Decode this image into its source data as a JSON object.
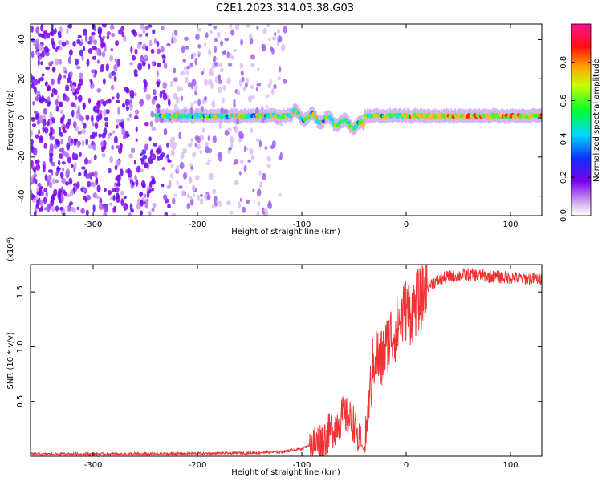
{
  "title": "C2E1.2023.314.03.38.G03",
  "chart_data": [
    {
      "type": "heatmap",
      "title": "C2E1.2023.314.03.38.G03",
      "xlabel": "Height of straight line (km)",
      "ylabel": "Frequency (Hz)",
      "xlim": [
        -360,
        130
      ],
      "ylim": [
        -50,
        48
      ],
      "x_ticks": [
        -300,
        -200,
        -100,
        0,
        100
      ],
      "y_ticks": [
        40,
        20,
        0,
        -20,
        -40
      ],
      "colorbar": {
        "label": "Normalized spectral amplitude",
        "range": [
          0.0,
          1.0
        ],
        "ticks": [
          0.0,
          0.2,
          0.4,
          0.6,
          0.8
        ],
        "colormap": "rainbow: white, violet, blue, cyan, green, yellow, red, magenta"
      },
      "features": [
        {
          "description": "scattered low-amplitude noise",
          "x_range": [
            -360,
            -115
          ],
          "y_range": [
            -50,
            48
          ]
        },
        {
          "description": "carrier line near 0 Hz",
          "x_range": [
            -240,
            130
          ],
          "y_center": 1
        }
      ],
      "grid": false
    },
    {
      "type": "line",
      "xlabel": "Height of straight line (km)",
      "ylabel": "SNR (10 * v/v)",
      "y_scale_label": "(x10⁴)",
      "xlim": [
        -360,
        130
      ],
      "ylim": [
        0,
        1.75
      ],
      "x_ticks": [
        -300,
        -200,
        -100,
        0,
        100
      ],
      "y_ticks": [
        0.5,
        1.0,
        1.5
      ],
      "y_tick_labels": [
        "0.5",
        "1.0",
        "1.5"
      ],
      "color": "#ee3333",
      "grid": false,
      "series": [
        {
          "x": [
            -360,
            -300,
            -250,
            -200,
            -150,
            -120,
            -100,
            -80,
            -70,
            -60,
            -50,
            -45,
            -40,
            -35,
            -30,
            -25,
            -20,
            -15,
            -10,
            -5,
            0,
            5,
            10,
            15,
            20,
            25,
            30,
            35,
            40,
            50,
            60,
            80,
            100,
            120,
            130
          ],
          "values": [
            0.02,
            0.02,
            0.02,
            0.025,
            0.03,
            0.04,
            0.07,
            0.15,
            0.25,
            0.38,
            0.3,
            0.12,
            0.06,
            0.55,
            0.95,
            0.85,
            0.95,
            1.1,
            1.15,
            1.25,
            1.35,
            1.3,
            1.4,
            1.45,
            1.55,
            1.58,
            1.6,
            1.62,
            1.64,
            1.65,
            1.66,
            1.64,
            1.63,
            1.62,
            1.62
          ]
        }
      ]
    }
  ]
}
